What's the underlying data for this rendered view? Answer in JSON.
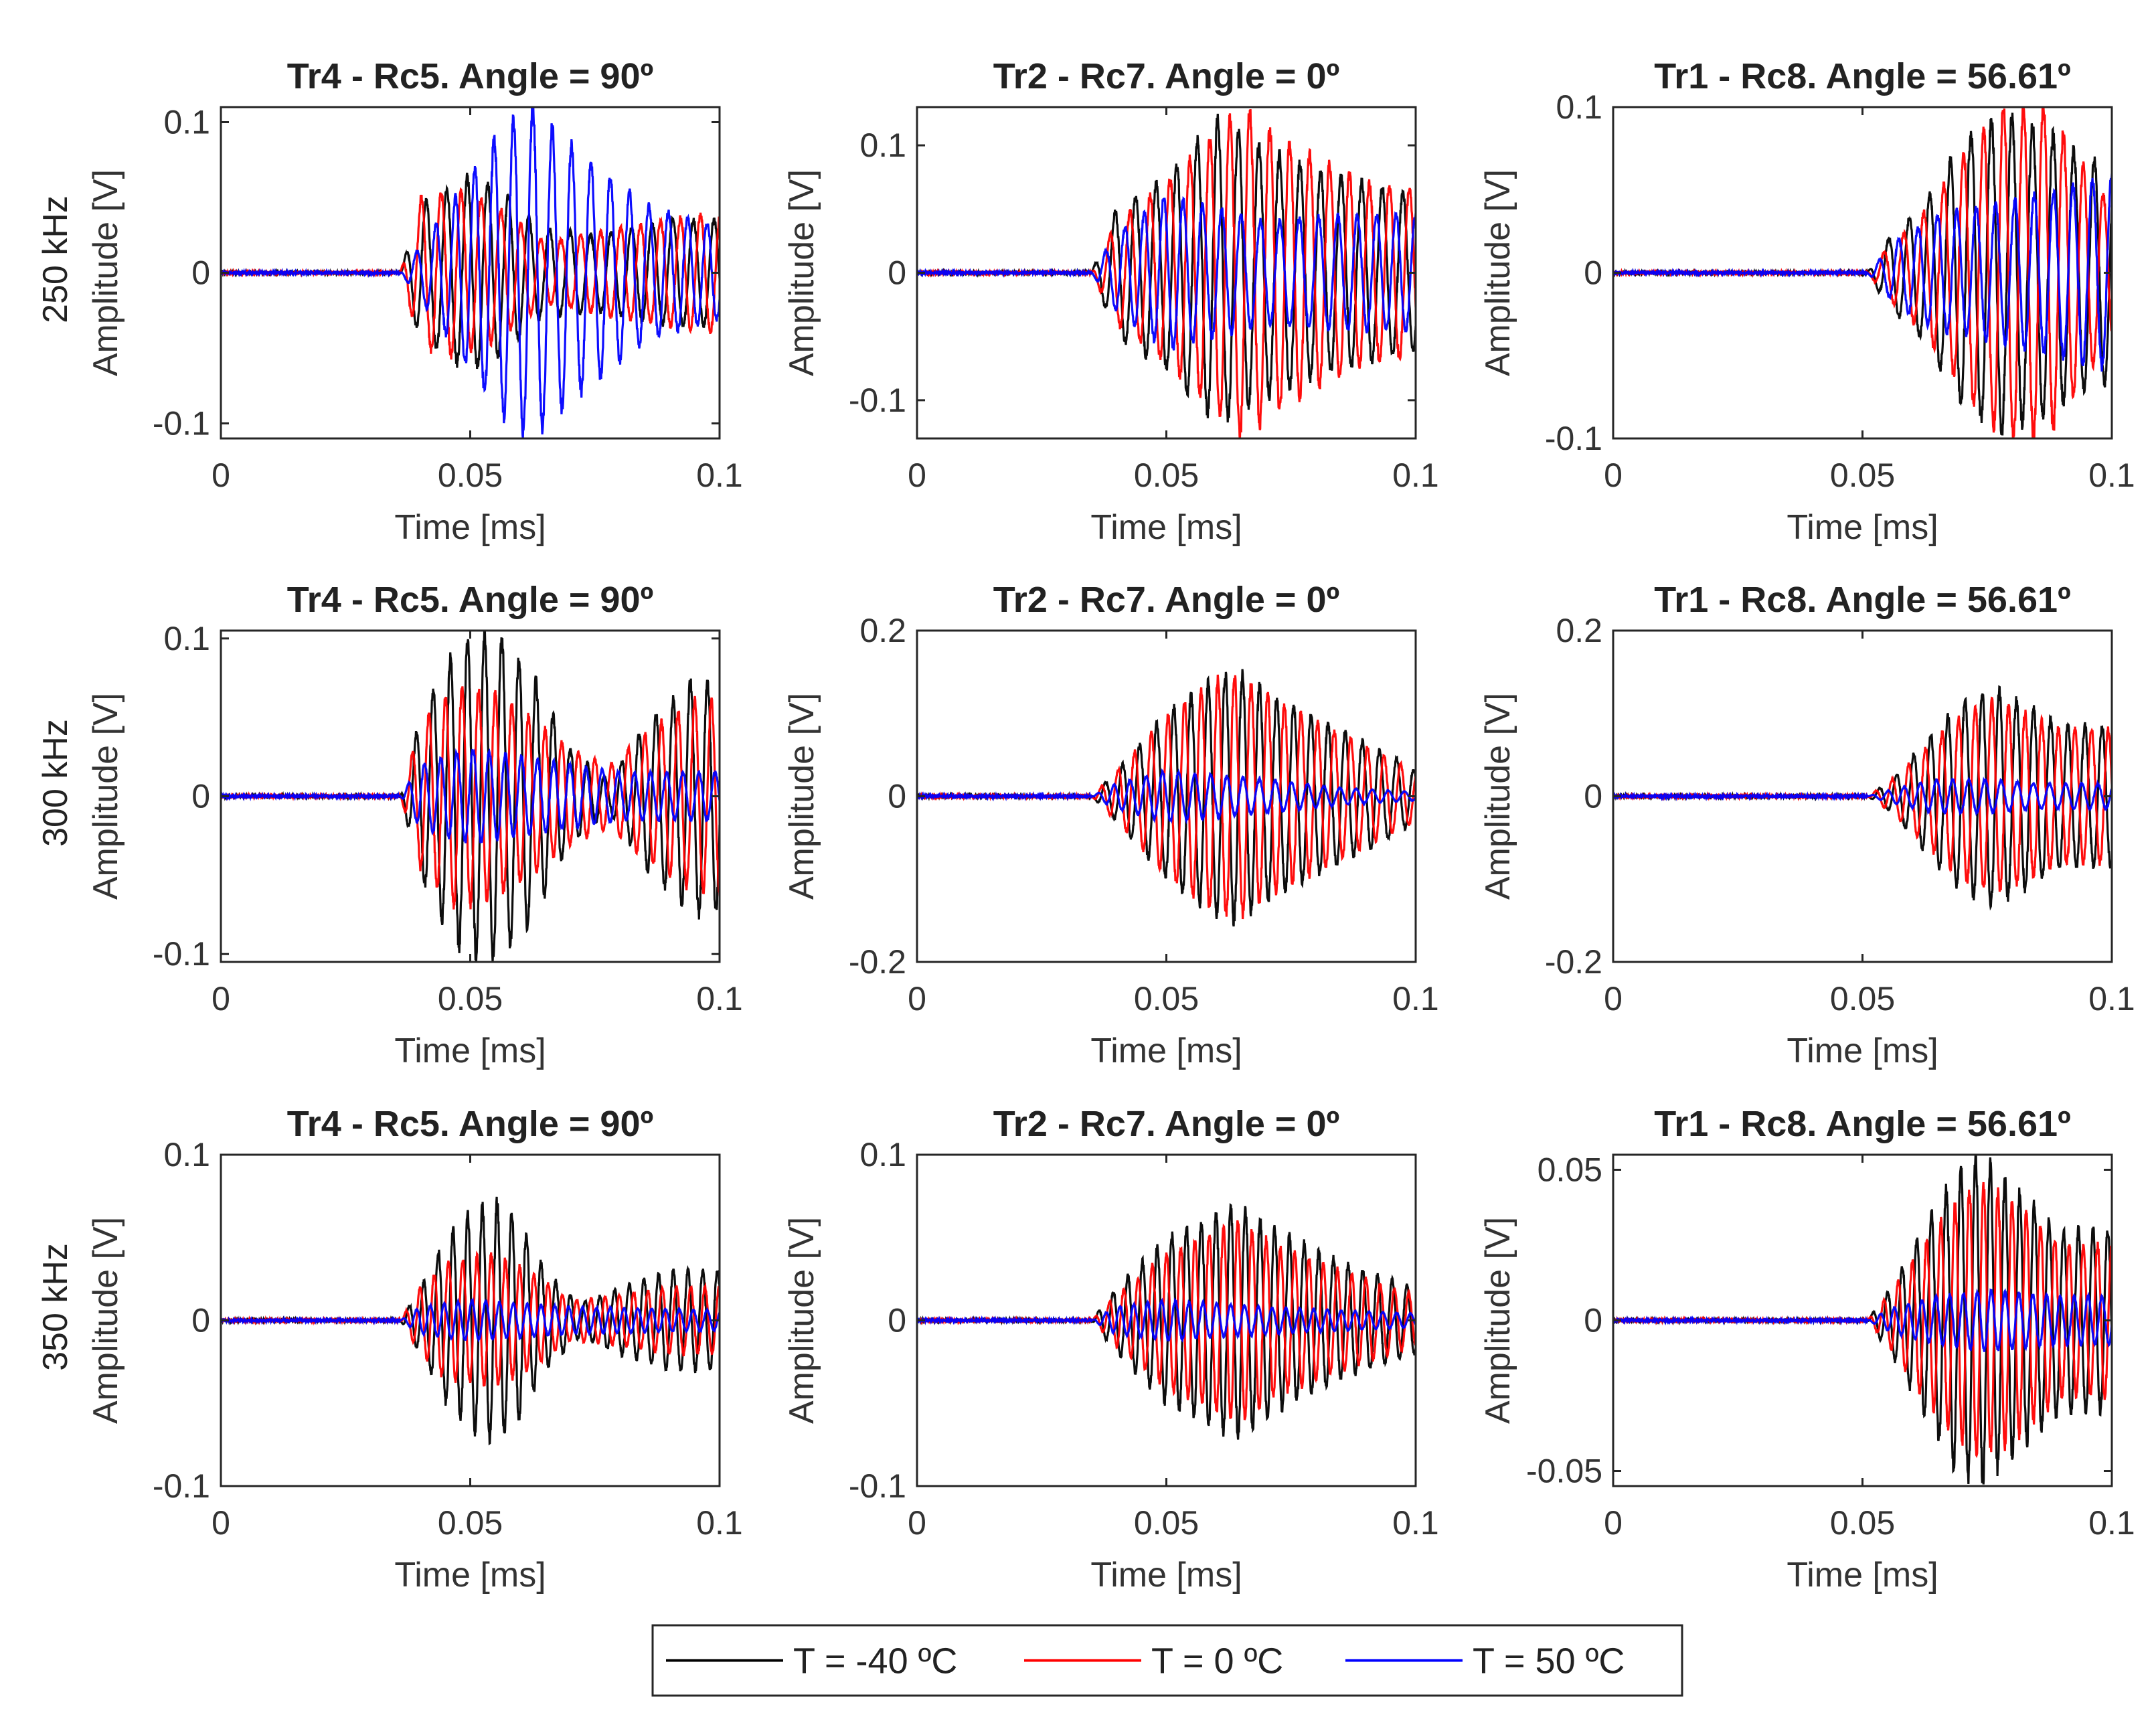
{
  "chart_data": {
    "type": "line",
    "layout": "3x3 grid of subplots",
    "xlabel": "Time [ms]",
    "ylabel": "Amplitude [V]",
    "xlim": [
      0,
      0.1
    ],
    "xticks": [
      0,
      0.05,
      0.1
    ],
    "xtick_labels": [
      "0",
      "0.05",
      "0.1"
    ],
    "legend": {
      "placement": "bottom-center",
      "entries": [
        {
          "label": "T = -40 ºC",
          "color": "#000000"
        },
        {
          "label": "T = 0 ºC",
          "color": "#ff0000"
        },
        {
          "label": "T = 50 ºC",
          "color": "#0000ff"
        }
      ]
    },
    "rows": [
      {
        "frequency": "250 kHz"
      },
      {
        "frequency": "300 kHz"
      },
      {
        "frequency": "350 kHz"
      }
    ],
    "panels": [
      {
        "row": 0,
        "col": 0,
        "title": "Tr4 - Rc5. Angle = 90º",
        "ylim": [
          -0.11,
          0.11
        ],
        "yticks": [
          0.1,
          0,
          -0.1
        ],
        "ytick_labels": [
          "0.1",
          "0",
          "-0.1"
        ],
        "onset_ms": 0.036,
        "series_envelopes": {
          "black": [
            [
              0.036,
              0
            ],
            [
              0.04,
              0.045
            ],
            [
              0.05,
              0.065
            ],
            [
              0.058,
              0.05
            ],
            [
              0.064,
              0.03
            ],
            [
              0.075,
              0.025
            ],
            [
              0.09,
              0.035
            ],
            [
              0.1,
              0.035
            ]
          ],
          "red": [
            [
              0.036,
              0
            ],
            [
              0.04,
              0.05
            ],
            [
              0.047,
              0.055
            ],
            [
              0.055,
              0.045
            ],
            [
              0.065,
              0.02
            ],
            [
              0.08,
              0.03
            ],
            [
              0.1,
              0.04
            ]
          ],
          "blue": [
            [
              0.036,
              0
            ],
            [
              0.045,
              0.04
            ],
            [
              0.055,
              0.09
            ],
            [
              0.062,
              0.11
            ],
            [
              0.07,
              0.085
            ],
            [
              0.085,
              0.045
            ],
            [
              0.1,
              0.03
            ]
          ]
        }
      },
      {
        "row": 0,
        "col": 1,
        "title": "Tr2 - Rc7. Angle = 0º",
        "ylim": [
          -0.13,
          0.13
        ],
        "yticks": [
          0.1,
          0,
          -0.1
        ],
        "ytick_labels": [
          "0.1",
          "0",
          "-0.1"
        ],
        "onset_ms": 0.035,
        "series_envelopes": {
          "black": [
            [
              0.035,
              0
            ],
            [
              0.04,
              0.05
            ],
            [
              0.05,
              0.075
            ],
            [
              0.06,
              0.12
            ],
            [
              0.068,
              0.1
            ],
            [
              0.08,
              0.08
            ],
            [
              0.1,
              0.06
            ]
          ],
          "red": [
            [
              0.035,
              0
            ],
            [
              0.04,
              0.04
            ],
            [
              0.05,
              0.07
            ],
            [
              0.06,
              0.11
            ],
            [
              0.065,
              0.13
            ],
            [
              0.075,
              0.1
            ],
            [
              0.09,
              0.07
            ],
            [
              0.1,
              0.065
            ]
          ],
          "blue": [
            [
              0.035,
              0
            ],
            [
              0.04,
              0.03
            ],
            [
              0.05,
              0.06
            ],
            [
              0.06,
              0.05
            ],
            [
              0.07,
              0.04
            ],
            [
              0.085,
              0.045
            ],
            [
              0.1,
              0.045
            ]
          ]
        }
      },
      {
        "row": 0,
        "col": 2,
        "title": "Tr1 - Rc8. Angle = 56.61º",
        "ylim": [
          -0.1,
          0.1
        ],
        "yticks": [
          0.1,
          0,
          -0.1
        ],
        "ytick_labels": [
          "0.1",
          "0",
          "-0.1"
        ],
        "onset_ms": 0.051,
        "series_envelopes": {
          "black": [
            [
              0.051,
              0
            ],
            [
              0.055,
              0.02
            ],
            [
              0.062,
              0.04
            ],
            [
              0.07,
              0.08
            ],
            [
              0.078,
              0.095
            ],
            [
              0.087,
              0.085
            ],
            [
              0.094,
              0.07
            ],
            [
              0.1,
              0.065
            ]
          ],
          "red": [
            [
              0.051,
              0
            ],
            [
              0.055,
              0.015
            ],
            [
              0.062,
              0.035
            ],
            [
              0.07,
              0.07
            ],
            [
              0.078,
              0.1
            ],
            [
              0.087,
              0.1
            ],
            [
              0.094,
              0.065
            ],
            [
              0.1,
              0.04
            ]
          ],
          "blue": [
            [
              0.051,
              0
            ],
            [
              0.057,
              0.02
            ],
            [
              0.065,
              0.035
            ],
            [
              0.075,
              0.04
            ],
            [
              0.09,
              0.05
            ],
            [
              0.1,
              0.06
            ]
          ]
        }
      },
      {
        "row": 1,
        "col": 0,
        "title": "Tr4 - Rc5. Angle = 90º",
        "ylim": [
          -0.105,
          0.105
        ],
        "yticks": [
          0.1,
          0,
          -0.1
        ],
        "ytick_labels": [
          "0.1",
          "0",
          "-0.1"
        ],
        "onset_ms": 0.036,
        "series_envelopes": {
          "black": [
            [
              0.036,
              0
            ],
            [
              0.04,
              0.05
            ],
            [
              0.047,
              0.095
            ],
            [
              0.055,
              0.105
            ],
            [
              0.062,
              0.08
            ],
            [
              0.07,
              0.03
            ],
            [
              0.078,
              0.01
            ],
            [
              0.085,
              0.045
            ],
            [
              0.095,
              0.075
            ],
            [
              0.1,
              0.07
            ]
          ],
          "red": [
            [
              0.036,
              0
            ],
            [
              0.04,
              0.045
            ],
            [
              0.047,
              0.07
            ],
            [
              0.055,
              0.065
            ],
            [
              0.062,
              0.05
            ],
            [
              0.07,
              0.03
            ],
            [
              0.078,
              0.02
            ],
            [
              0.085,
              0.04
            ],
            [
              0.095,
              0.06
            ],
            [
              0.1,
              0.06
            ]
          ],
          "blue": [
            [
              0.036,
              0
            ],
            [
              0.04,
              0.02
            ],
            [
              0.05,
              0.03
            ],
            [
              0.06,
              0.025
            ],
            [
              0.07,
              0.02
            ],
            [
              0.08,
              0.015
            ],
            [
              0.1,
              0.015
            ]
          ]
        }
      },
      {
        "row": 1,
        "col": 1,
        "title": "Tr2 - Rc7. Angle = 0º",
        "ylim": [
          -0.2,
          0.2
        ],
        "yticks": [
          0.2,
          0,
          -0.2
        ],
        "ytick_labels": [
          "0.2",
          "0",
          "-0.2"
        ],
        "onset_ms": 0.035,
        "series_envelopes": {
          "black": [
            [
              0.035,
              0
            ],
            [
              0.04,
              0.03
            ],
            [
              0.05,
              0.1
            ],
            [
              0.06,
              0.145
            ],
            [
              0.064,
              0.15
            ],
            [
              0.072,
              0.12
            ],
            [
              0.085,
              0.08
            ],
            [
              0.095,
              0.05
            ],
            [
              0.1,
              0.03
            ]
          ],
          "red": [
            [
              0.035,
              0
            ],
            [
              0.04,
              0.03
            ],
            [
              0.05,
              0.095
            ],
            [
              0.06,
              0.14
            ],
            [
              0.064,
              0.145
            ],
            [
              0.072,
              0.115
            ],
            [
              0.085,
              0.075
            ],
            [
              0.095,
              0.045
            ],
            [
              0.1,
              0.03
            ]
          ],
          "blue": [
            [
              0.035,
              0
            ],
            [
              0.04,
              0.015
            ],
            [
              0.05,
              0.03
            ],
            [
              0.06,
              0.025
            ],
            [
              0.07,
              0.02
            ],
            [
              0.085,
              0.01
            ],
            [
              0.1,
              0.005
            ]
          ]
        }
      },
      {
        "row": 1,
        "col": 2,
        "title": "Tr1 - Rc8. Angle = 56.61º",
        "ylim": [
          -0.2,
          0.2
        ],
        "yticks": [
          0.2,
          0,
          -0.2
        ],
        "ytick_labels": [
          "0.2",
          "0",
          "-0.2"
        ],
        "onset_ms": 0.051,
        "series_envelopes": {
          "black": [
            [
              0.051,
              0
            ],
            [
              0.056,
              0.02
            ],
            [
              0.063,
              0.07
            ],
            [
              0.07,
              0.115
            ],
            [
              0.076,
              0.13
            ],
            [
              0.083,
              0.11
            ],
            [
              0.09,
              0.085
            ],
            [
              0.1,
              0.085
            ]
          ],
          "red": [
            [
              0.051,
              0
            ],
            [
              0.056,
              0.02
            ],
            [
              0.063,
              0.06
            ],
            [
              0.07,
              0.1
            ],
            [
              0.076,
              0.115
            ],
            [
              0.083,
              0.1
            ],
            [
              0.09,
              0.08
            ],
            [
              0.1,
              0.08
            ]
          ],
          "blue": [
            [
              0.051,
              0
            ],
            [
              0.056,
              0.008
            ],
            [
              0.065,
              0.02
            ],
            [
              0.075,
              0.02
            ],
            [
              0.085,
              0.015
            ],
            [
              0.1,
              0.015
            ]
          ]
        }
      },
      {
        "row": 2,
        "col": 0,
        "title": "Tr4 - Rc5. Angle = 90º",
        "ylim": [
          -0.1,
          0.1
        ],
        "yticks": [
          0.1,
          0,
          -0.1
        ],
        "ytick_labels": [
          "0.1",
          "0",
          "-0.1"
        ],
        "onset_ms": 0.036,
        "series_envelopes": {
          "black": [
            [
              0.036,
              0
            ],
            [
              0.04,
              0.02
            ],
            [
              0.045,
              0.05
            ],
            [
              0.05,
              0.065
            ],
            [
              0.055,
              0.072
            ],
            [
              0.06,
              0.06
            ],
            [
              0.065,
              0.03
            ],
            [
              0.072,
              0.01
            ],
            [
              0.08,
              0.02
            ],
            [
              0.09,
              0.03
            ],
            [
              0.1,
              0.03
            ]
          ],
          "red": [
            [
              0.036,
              0
            ],
            [
              0.04,
              0.02
            ],
            [
              0.045,
              0.035
            ],
            [
              0.055,
              0.04
            ],
            [
              0.062,
              0.03
            ],
            [
              0.07,
              0.012
            ],
            [
              0.08,
              0.015
            ],
            [
              0.09,
              0.02
            ],
            [
              0.1,
              0.02
            ]
          ],
          "blue": [
            [
              0.036,
              0
            ],
            [
              0.04,
              0.008
            ],
            [
              0.05,
              0.012
            ],
            [
              0.06,
              0.01
            ],
            [
              0.07,
              0.008
            ],
            [
              0.1,
              0.006
            ]
          ]
        }
      },
      {
        "row": 2,
        "col": 1,
        "title": "Tr2 - Rc7. Angle = 0º",
        "ylim": [
          -0.1,
          0.1
        ],
        "yticks": [
          0.1,
          0,
          -0.1
        ],
        "ytick_labels": [
          "0.1",
          "0",
          "-0.1"
        ],
        "onset_ms": 0.035,
        "series_envelopes": {
          "black": [
            [
              0.035,
              0
            ],
            [
              0.04,
              0.02
            ],
            [
              0.05,
              0.05
            ],
            [
              0.06,
              0.065
            ],
            [
              0.065,
              0.07
            ],
            [
              0.072,
              0.055
            ],
            [
              0.085,
              0.035
            ],
            [
              0.1,
              0.02
            ]
          ],
          "red": [
            [
              0.035,
              0
            ],
            [
              0.04,
              0.015
            ],
            [
              0.05,
              0.04
            ],
            [
              0.06,
              0.055
            ],
            [
              0.065,
              0.06
            ],
            [
              0.072,
              0.045
            ],
            [
              0.085,
              0.03
            ],
            [
              0.1,
              0.015
            ]
          ],
          "blue": [
            [
              0.035,
              0
            ],
            [
              0.04,
              0.008
            ],
            [
              0.05,
              0.012
            ],
            [
              0.06,
              0.01
            ],
            [
              0.07,
              0.008
            ],
            [
              0.1,
              0.004
            ]
          ]
        }
      },
      {
        "row": 2,
        "col": 2,
        "title": "Tr1 - Rc8. Angle = 56.61º",
        "ylim": [
          -0.055,
          0.055
        ],
        "yticks": [
          0.05,
          0,
          -0.05
        ],
        "ytick_labels": [
          "0.05",
          "0",
          "-0.05"
        ],
        "onset_ms": 0.051,
        "series_envelopes": {
          "black": [
            [
              0.051,
              0
            ],
            [
              0.056,
              0.012
            ],
            [
              0.062,
              0.03
            ],
            [
              0.068,
              0.048
            ],
            [
              0.073,
              0.055
            ],
            [
              0.08,
              0.045
            ],
            [
              0.09,
              0.03
            ],
            [
              0.1,
              0.03
            ]
          ],
          "red": [
            [
              0.051,
              0
            ],
            [
              0.056,
              0.01
            ],
            [
              0.062,
              0.025
            ],
            [
              0.068,
              0.038
            ],
            [
              0.073,
              0.045
            ],
            [
              0.08,
              0.04
            ],
            [
              0.09,
              0.025
            ],
            [
              0.1,
              0.025
            ]
          ],
          "blue": [
            [
              0.051,
              0
            ],
            [
              0.056,
              0.004
            ],
            [
              0.065,
              0.008
            ],
            [
              0.075,
              0.01
            ],
            [
              0.09,
              0.008
            ],
            [
              0.1,
              0.008
            ]
          ]
        }
      }
    ]
  }
}
